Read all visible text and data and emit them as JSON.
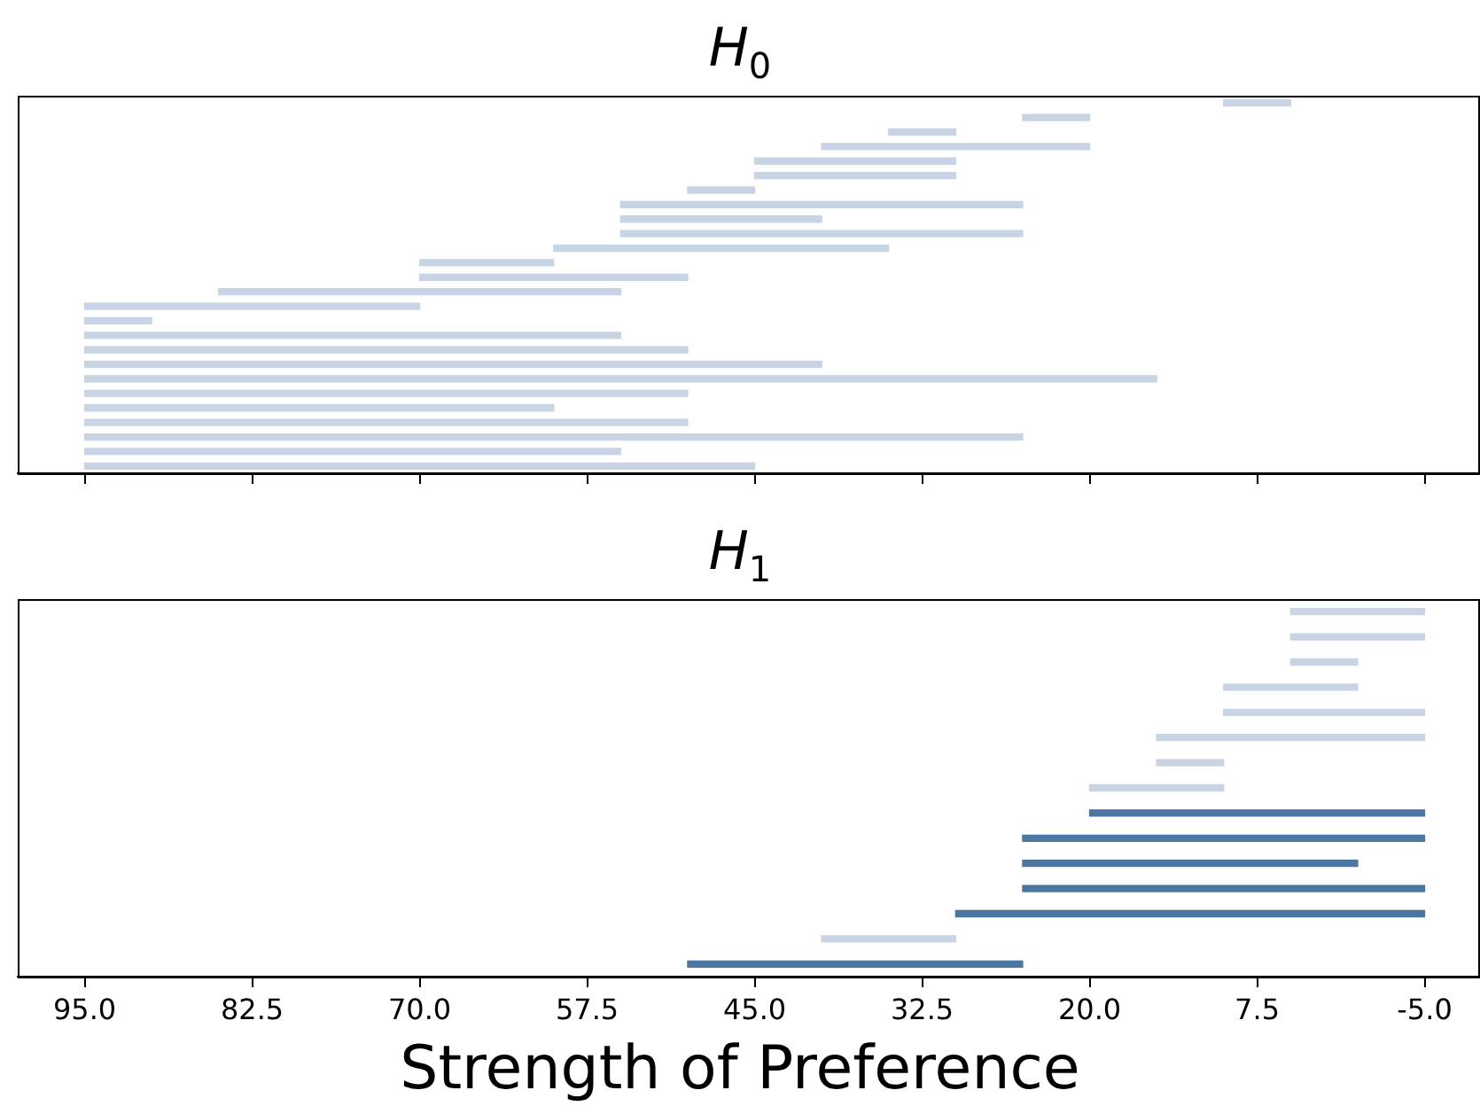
{
  "chart_data": [
    {
      "type": "bar",
      "orientation": "horizontal",
      "title": "H$_{0}$",
      "categories": [
        null,
        null,
        null,
        null,
        null,
        null,
        null,
        null,
        null,
        null,
        null,
        null,
        null,
        null,
        null,
        null,
        null,
        null,
        null,
        null,
        null,
        null,
        null,
        null,
        null,
        null
      ],
      "base": [
        5,
        20,
        30,
        20,
        30,
        30,
        45,
        25,
        40,
        25,
        35,
        60,
        50,
        55,
        70,
        90,
        55,
        50,
        40,
        15,
        50,
        60,
        50,
        25,
        55,
        45
      ],
      "values": [
        5,
        5,
        5,
        20,
        15,
        15,
        5,
        30,
        15,
        30,
        25,
        10,
        20,
        30,
        25,
        5,
        40,
        45,
        55,
        80,
        45,
        35,
        45,
        70,
        40,
        50
      ],
      "colors": [
        "#c8d4e3",
        "#c8d4e3",
        "#c8d4e3",
        "#c8d4e3",
        "#c8d4e3",
        "#c8d4e3",
        "#c8d4e3",
        "#c8d4e3",
        "#c8d4e3",
        "#c8d4e3",
        "#c8d4e3",
        "#c8d4e3",
        "#c8d4e3",
        "#c8d4e3",
        "#c8d4e3",
        "#c8d4e3",
        "#c8d4e3",
        "#c8d4e3",
        "#c8d4e3",
        "#c8d4e3",
        "#c8d4e3",
        "#c8d4e3",
        "#c8d4e3",
        "#c8d4e3",
        "#c8d4e3",
        "#c8d4e3"
      ],
      "xlim": [
        100,
        -9
      ],
      "xticks": [
        95,
        82.5,
        70,
        57.5,
        45,
        32.5,
        20,
        7.5,
        -5
      ],
      "tick_labels": false
    },
    {
      "type": "bar",
      "orientation": "horizontal",
      "title": "H$_{1}$",
      "xlabel": "Strength of Preference",
      "categories": [
        null,
        null,
        null,
        null,
        null,
        null,
        null,
        null,
        null,
        null,
        null,
        null,
        null,
        null,
        null
      ],
      "base": [
        -5,
        -5,
        0,
        0,
        -5,
        -5,
        10,
        10,
        -5,
        -5,
        0,
        -5,
        -5,
        30,
        25
      ],
      "values": [
        10,
        10,
        5,
        10,
        15,
        20,
        5,
        10,
        25,
        30,
        25,
        30,
        35,
        10,
        25
      ],
      "colors": [
        "#c8d4e3",
        "#c8d4e3",
        "#c8d4e3",
        "#c8d4e3",
        "#c8d4e3",
        "#c8d4e3",
        "#c8d4e3",
        "#c8d4e3",
        "#4a76a1",
        "#4a76a1",
        "#4a76a1",
        "#4a76a1",
        "#4a76a1",
        "#c8d4e3",
        "#4a76a1"
      ],
      "xlim": [
        100,
        -9
      ],
      "xticks": [
        {
          "value": 95,
          "label": "95.0"
        },
        {
          "value": 82.5,
          "label": "82.5"
        },
        {
          "value": 70,
          "label": "70.0"
        },
        {
          "value": 57.5,
          "label": "57.5"
        },
        {
          "value": 45,
          "label": "45.0"
        },
        {
          "value": 32.5,
          "label": "32.5"
        },
        {
          "value": 20,
          "label": "20.0"
        },
        {
          "value": 7.5,
          "label": "7.5"
        },
        {
          "value": -5,
          "label": "-5.0"
        }
      ],
      "tick_labels": "x"
    }
  ]
}
